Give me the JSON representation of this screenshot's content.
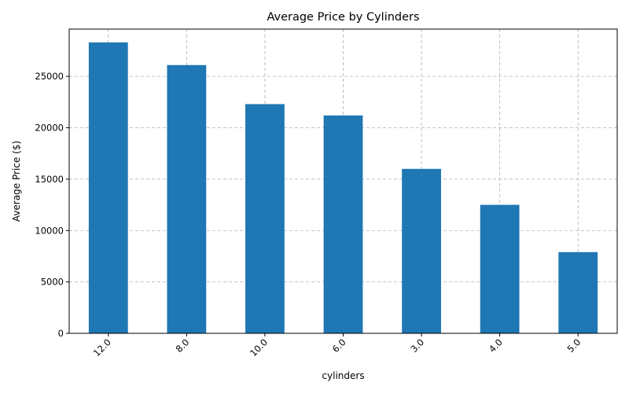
{
  "chart_data": {
    "type": "bar",
    "title": "Average Price by Cylinders",
    "xlabel": "cylinders",
    "ylabel": "Average Price ($)",
    "categories": [
      "12.0",
      "8.0",
      "10.0",
      "6.0",
      "3.0",
      "4.0",
      "5.0"
    ],
    "values": [
      28300,
      26100,
      22300,
      21200,
      16000,
      12500,
      7900
    ],
    "ylim": [
      0,
      29600
    ],
    "yticks": [
      0,
      5000,
      10000,
      15000,
      20000,
      25000
    ],
    "grid": true,
    "bar_color": "#1f77b4",
    "grid_color": "#b0b0b0"
  }
}
